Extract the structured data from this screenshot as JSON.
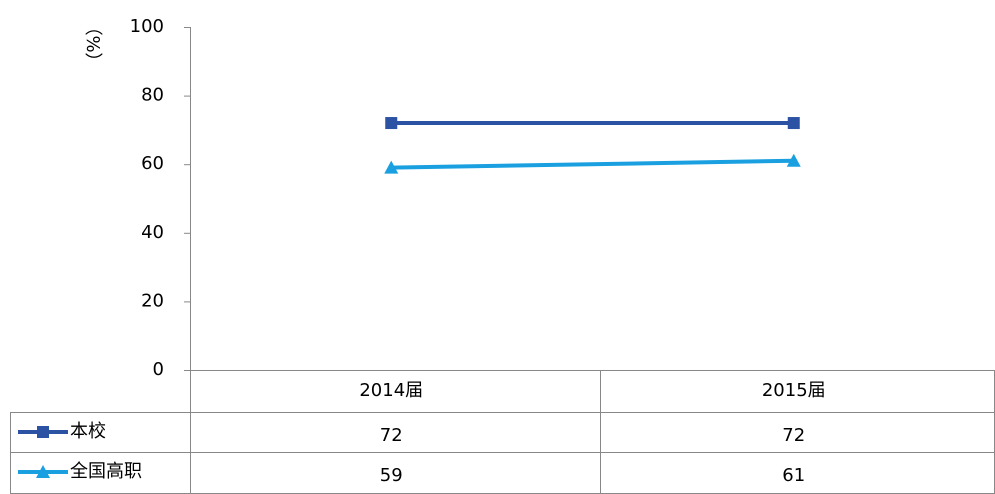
{
  "chart_data": {
    "type": "line",
    "y_label": "（%）",
    "categories": [
      "2014届",
      "2015届"
    ],
    "series": [
      {
        "name": "本校",
        "color": "#2b52a3",
        "marker": "square",
        "values": [
          72,
          72
        ]
      },
      {
        "name": "全国高职",
        "color": "#1aa0e0",
        "marker": "triangle",
        "values": [
          59,
          61
        ]
      }
    ],
    "ylim": [
      0,
      100
    ],
    "yticks": [
      0,
      20,
      40,
      60,
      80,
      100
    ],
    "grid": false
  }
}
